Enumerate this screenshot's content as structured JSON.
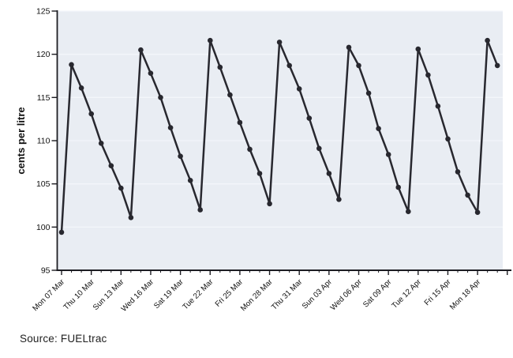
{
  "page": {
    "source_note": "Source: FUELtrac"
  },
  "colors": {
    "plot_background": "#e9edf3",
    "gridline": "#f3f6fa",
    "line": "#28282f",
    "marker": "#28282f",
    "axis": "#1c1c22",
    "tick_text": "#111111",
    "source_text": "#1f1f1f"
  },
  "chart_data": {
    "type": "line",
    "ylabel": "cents per litre",
    "ylim": [
      95,
      125
    ],
    "ytick_step": 5,
    "grid": true,
    "legend_position": "none",
    "x_labeled_tick_interval": 3,
    "x": [
      "Mon 07 Mar",
      "Tue 08 Mar",
      "Wed 09 Mar",
      "Thu 10 Mar",
      "Fri 11 Mar",
      "Sat 12 Mar",
      "Sun 13 Mar",
      "Mon 14 Mar",
      "Tue 15 Mar",
      "Wed 16 Mar",
      "Thu 17 Mar",
      "Fri 18 Mar",
      "Sat 19 Mar",
      "Sun 20 Mar",
      "Mon 21 Mar",
      "Tue 22 Mar",
      "Wed 23 Mar",
      "Thu 24 Mar",
      "Fri 25 Mar",
      "Sat 26 Mar",
      "Sun 27 Mar",
      "Mon 28 Mar",
      "Tue 29 Mar",
      "Wed 30 Mar",
      "Thu 31 Mar",
      "Fri 01 Apr",
      "Sat 02 Apr",
      "Sun 03 Apr",
      "Mon 04 Apr",
      "Tue 05 Apr",
      "Wed 06 Apr",
      "Thu 07 Apr",
      "Fri 08 Apr",
      "Sat 09 Apr",
      "Sun 10 Apr",
      "Mon 11 Apr",
      "Tue 12 Apr",
      "Wed 13 Apr",
      "Thu 14 Apr",
      "Fri 15 Apr",
      "Sat 16 Apr",
      "Sun 17 Apr",
      "Mon 18 Apr",
      "Tue 19 Apr",
      "Wed 20 Apr"
    ],
    "values": [
      99.4,
      118.8,
      116.1,
      113.1,
      109.7,
      107.1,
      104.5,
      101.1,
      120.5,
      117.8,
      115.0,
      111.5,
      108.2,
      105.4,
      102.0,
      121.6,
      118.5,
      115.3,
      112.1,
      109.0,
      106.2,
      102.7,
      121.4,
      118.7,
      116.0,
      112.6,
      109.1,
      106.2,
      103.2,
      120.8,
      118.7,
      115.5,
      111.4,
      108.4,
      104.6,
      101.8,
      120.6,
      117.6,
      114.0,
      110.2,
      106.4,
      103.7,
      101.7,
      121.6,
      118.7
    ]
  }
}
